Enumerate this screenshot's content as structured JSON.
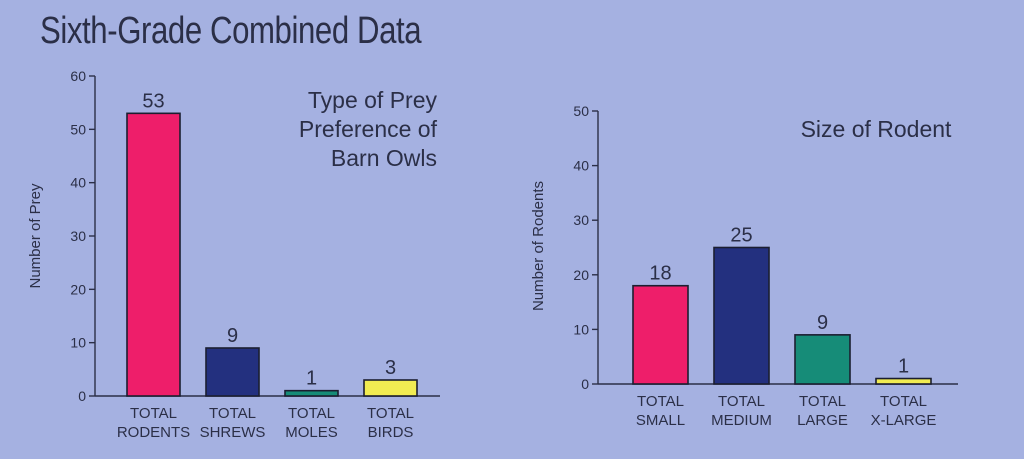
{
  "page": {
    "title": "Sixth-Grade Combined Data"
  },
  "chart_data": [
    {
      "type": "bar",
      "title": [
        "Type of Prey",
        "Preference of",
        "Barn Owls"
      ],
      "ylabel": "Number of Prey",
      "xlabel": "",
      "ylim": [
        0,
        60
      ],
      "yticks": [
        0,
        10,
        20,
        30,
        40,
        50,
        60
      ],
      "grid": false,
      "categories": [
        [
          "TOTAL",
          "RODENTS"
        ],
        [
          "TOTAL",
          "SHREWS"
        ],
        [
          "TOTAL",
          "MOLES"
        ],
        [
          "TOTAL",
          "BIRDS"
        ]
      ],
      "values": [
        53,
        9,
        1,
        3
      ],
      "colors": [
        "#ee1e6a",
        "#23307f",
        "#168c78",
        "#f1ec52"
      ]
    },
    {
      "type": "bar",
      "title": [
        "Size of Rodent"
      ],
      "ylabel": "Number of Rodents",
      "xlabel": "",
      "ylim": [
        0,
        50
      ],
      "yticks": [
        0,
        10,
        20,
        30,
        40,
        50
      ],
      "grid": false,
      "categories": [
        [
          "TOTAL",
          "SMALL"
        ],
        [
          "TOTAL",
          "MEDIUM"
        ],
        [
          "TOTAL",
          "LARGE"
        ],
        [
          "TOTAL",
          "X-LARGE"
        ]
      ],
      "values": [
        18,
        25,
        9,
        1
      ],
      "colors": [
        "#ee1e6a",
        "#23307f",
        "#168c78",
        "#f1ec52"
      ]
    }
  ]
}
